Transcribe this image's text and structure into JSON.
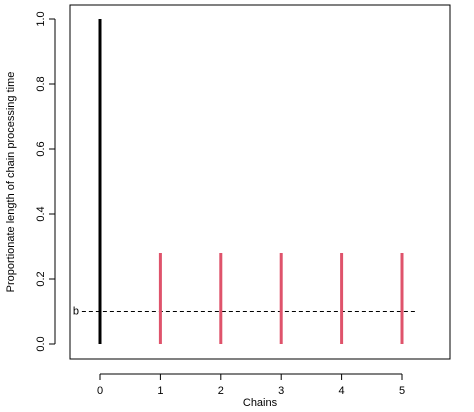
{
  "chart_data": {
    "type": "line",
    "title": "",
    "xlabel": "Chains",
    "ylabel": "Proportionate length of chain processing time",
    "xlim": [
      -0.5,
      5.3
    ],
    "ylim": [
      0,
      1.0
    ],
    "x_ticks": [
      0,
      1,
      2,
      3,
      4,
      5
    ],
    "x_tick_labels": [
      "0",
      "1",
      "2",
      "3",
      "4",
      "5"
    ],
    "y_ticks": [
      0.0,
      0.2,
      0.4,
      0.6,
      0.8,
      1.0
    ],
    "y_tick_labels": [
      "0.0",
      "0.2",
      "0.4",
      "0.6",
      "0.8",
      "1.0"
    ],
    "grid": false,
    "series": [
      {
        "segments": [
          {
            "x": 0,
            "y0": 0,
            "y1": 1.0
          }
        ],
        "color": "#000000",
        "style": "solid"
      },
      {
        "segments": [
          {
            "x": 1,
            "y0": 0,
            "y1": 0.28
          },
          {
            "x": 2,
            "y0": 0,
            "y1": 0.28
          },
          {
            "x": 3,
            "y0": 0,
            "y1": 0.28
          },
          {
            "x": 4,
            "y0": 0,
            "y1": 0.28
          },
          {
            "x": 5,
            "y0": 0,
            "y1": 0.28
          }
        ],
        "color": "#df536b",
        "style": "solid"
      }
    ],
    "reference_line": {
      "y": 0.1,
      "x_from": -0.3,
      "x_to": 5.25,
      "style": "dashed",
      "color": "#000000",
      "label": "b"
    }
  }
}
